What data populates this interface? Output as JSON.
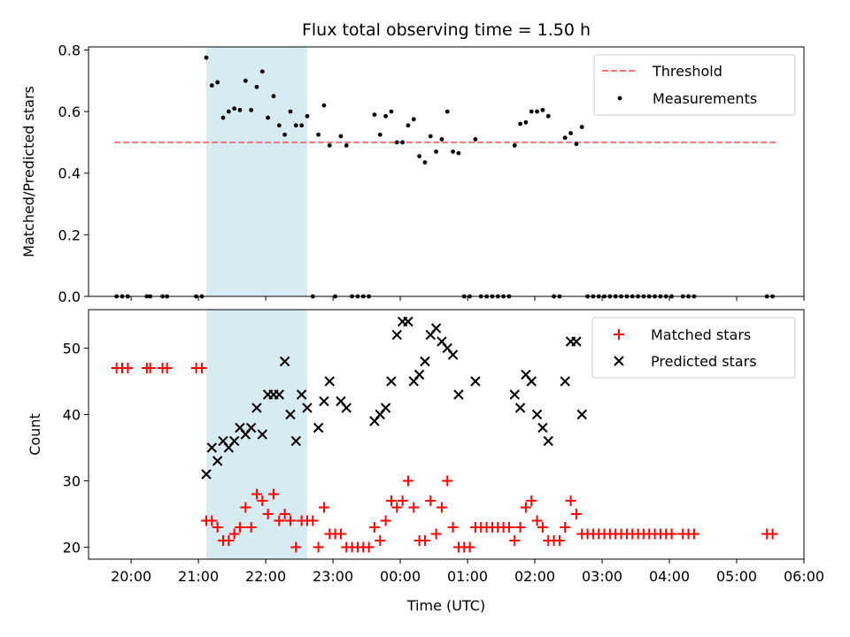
{
  "figure": {
    "title": "Flux total observing time = 1.50 h",
    "shaded_span": [
      "21:07",
      "22:37"
    ],
    "shade_color": "#add8e6"
  },
  "chart_data": [
    {
      "type": "scatter",
      "ylabel": "Matched/Predicted stars",
      "xlim": [
        "19:22",
        "06:00"
      ],
      "ylim": [
        0,
        0.81
      ],
      "yticks": [
        0.0,
        0.2,
        0.4,
        0.6,
        0.8
      ],
      "ytick_labels": [
        "0.0",
        "0.2",
        "0.4",
        "0.6",
        "0.8"
      ],
      "legend_position": "top-right",
      "threshold": {
        "name": "Threshold",
        "value": 0.5,
        "x": [
          "19:45",
          "05:35"
        ],
        "color": "#ff7070"
      },
      "series": [
        {
          "name": "Measurements",
          "color": "#000000",
          "marker": "dot",
          "points": [
            [
              "19:47",
              0
            ],
            [
              "19:52",
              0
            ],
            [
              "19:57",
              0
            ],
            [
              "20:14",
              0
            ],
            [
              "20:17",
              0
            ],
            [
              "20:28",
              0
            ],
            [
              "20:32",
              0
            ],
            [
              "20:58",
              0
            ],
            [
              "21:03",
              0
            ],
            [
              "21:07",
              0.775
            ],
            [
              "21:12",
              0.685
            ],
            [
              "21:17",
              0.695
            ],
            [
              "21:22",
              0.58
            ],
            [
              "21:27",
              0.6
            ],
            [
              "21:32",
              0.61
            ],
            [
              "21:37",
              0.605
            ],
            [
              "21:42",
              0.7
            ],
            [
              "21:47",
              0.605
            ],
            [
              "21:52",
              0.68
            ],
            [
              "21:57",
              0.73
            ],
            [
              "22:02",
              0.58
            ],
            [
              "22:07",
              0.65
            ],
            [
              "22:12",
              0.555
            ],
            [
              "22:17",
              0.525
            ],
            [
              "22:22",
              0.6
            ],
            [
              "22:27",
              0.555
            ],
            [
              "22:32",
              0.555
            ],
            [
              "22:37",
              0.585
            ],
            [
              "22:42",
              0
            ],
            [
              "22:47",
              0.525
            ],
            [
              "22:52",
              0.62
            ],
            [
              "22:57",
              0.49
            ],
            [
              "23:02",
              0
            ],
            [
              "23:07",
              0.52
            ],
            [
              "23:12",
              0.49
            ],
            [
              "23:17",
              0
            ],
            [
              "23:22",
              0
            ],
            [
              "23:27",
              0
            ],
            [
              "23:32",
              0
            ],
            [
              "23:37",
              0.59
            ],
            [
              "23:42",
              0.525
            ],
            [
              "23:47",
              0.585
            ],
            [
              "23:52",
              0.6
            ],
            [
              "23:57",
              0.5
            ],
            [
              "00:02",
              0.5
            ],
            [
              "00:07",
              0.555
            ],
            [
              "00:12",
              0.575
            ],
            [
              "00:17",
              0.455
            ],
            [
              "00:22",
              0.435
            ],
            [
              "00:27",
              0.52
            ],
            [
              "00:32",
              0.47
            ],
            [
              "00:37",
              0.51
            ],
            [
              "00:42",
              0.6
            ],
            [
              "00:47",
              0.47
            ],
            [
              "00:52",
              0.465
            ],
            [
              "00:57",
              0
            ],
            [
              "01:02",
              0
            ],
            [
              "01:07",
              0.51
            ],
            [
              "01:12",
              0
            ],
            [
              "01:17",
              0
            ],
            [
              "01:22",
              0
            ],
            [
              "01:27",
              0
            ],
            [
              "01:32",
              0
            ],
            [
              "01:37",
              0
            ],
            [
              "01:42",
              0.49
            ],
            [
              "01:47",
              0.56
            ],
            [
              "01:52",
              0.565
            ],
            [
              "01:57",
              0.6
            ],
            [
              "02:02",
              0.6
            ],
            [
              "02:07",
              0.605
            ],
            [
              "02:12",
              0.585
            ],
            [
              "02:17",
              0
            ],
            [
              "02:22",
              0
            ],
            [
              "02:27",
              0.515
            ],
            [
              "02:32",
              0.53
            ],
            [
              "02:37",
              0.495
            ],
            [
              "02:42",
              0.55
            ],
            [
              "02:47",
              0
            ],
            [
              "02:52",
              0
            ],
            [
              "02:57",
              0
            ],
            [
              "03:02",
              0
            ],
            [
              "03:07",
              0
            ],
            [
              "03:12",
              0
            ],
            [
              "03:17",
              0
            ],
            [
              "03:22",
              0
            ],
            [
              "03:27",
              0
            ],
            [
              "03:32",
              0
            ],
            [
              "03:37",
              0
            ],
            [
              "03:42",
              0
            ],
            [
              "03:47",
              0
            ],
            [
              "03:52",
              0
            ],
            [
              "03:57",
              0
            ],
            [
              "04:02",
              0
            ],
            [
              "04:12",
              0
            ],
            [
              "04:17",
              0
            ],
            [
              "04:22",
              0
            ],
            [
              "05:27",
              0
            ],
            [
              "05:32",
              0
            ]
          ]
        }
      ]
    },
    {
      "type": "scatter",
      "xlabel": "Time (UTC)",
      "ylabel": "Count",
      "xlim": [
        "19:22",
        "06:00"
      ],
      "ylim": [
        18.2,
        55.8
      ],
      "yticks": [
        20,
        30,
        40,
        50
      ],
      "ytick_labels": [
        "20",
        "30",
        "40",
        "50"
      ],
      "xticks": [
        "20:00",
        "21:00",
        "22:00",
        "23:00",
        "00:00",
        "01:00",
        "02:00",
        "03:00",
        "04:00",
        "05:00",
        "06:00"
      ],
      "xtick_labels": [
        "20:00",
        "21:00",
        "22:00",
        "23:00",
        "00:00",
        "01:00",
        "02:00",
        "03:00",
        "04:00",
        "05:00",
        "06:00"
      ],
      "legend_position": "top-right",
      "series": [
        {
          "name": "Matched stars",
          "color": "#ff0000",
          "marker": "plus",
          "points": [
            [
              "19:47",
              47
            ],
            [
              "19:52",
              47
            ],
            [
              "19:57",
              47
            ],
            [
              "20:14",
              47
            ],
            [
              "20:17",
              47
            ],
            [
              "20:28",
              47
            ],
            [
              "20:32",
              47
            ],
            [
              "20:58",
              47
            ],
            [
              "21:03",
              47
            ],
            [
              "21:07",
              24
            ],
            [
              "21:12",
              24
            ],
            [
              "21:17",
              23
            ],
            [
              "21:22",
              21
            ],
            [
              "21:27",
              21
            ],
            [
              "21:32",
              22
            ],
            [
              "21:37",
              23
            ],
            [
              "21:42",
              26
            ],
            [
              "21:47",
              23
            ],
            [
              "21:52",
              28
            ],
            [
              "21:57",
              27
            ],
            [
              "22:02",
              25
            ],
            [
              "22:07",
              28
            ],
            [
              "22:12",
              24
            ],
            [
              "22:17",
              25
            ],
            [
              "22:22",
              24
            ],
            [
              "22:27",
              20
            ],
            [
              "22:32",
              24
            ],
            [
              "22:37",
              24
            ],
            [
              "22:42",
              24
            ],
            [
              "22:47",
              20
            ],
            [
              "22:52",
              26
            ],
            [
              "22:57",
              22
            ],
            [
              "23:02",
              22
            ],
            [
              "23:07",
              22
            ],
            [
              "23:12",
              20
            ],
            [
              "23:17",
              20
            ],
            [
              "23:22",
              20
            ],
            [
              "23:27",
              20
            ],
            [
              "23:32",
              20
            ],
            [
              "23:37",
              23
            ],
            [
              "23:42",
              21
            ],
            [
              "23:47",
              24
            ],
            [
              "23:52",
              27
            ],
            [
              "23:57",
              26
            ],
            [
              "00:02",
              27
            ],
            [
              "00:07",
              30
            ],
            [
              "00:12",
              26
            ],
            [
              "00:17",
              21
            ],
            [
              "00:22",
              21
            ],
            [
              "00:27",
              27
            ],
            [
              "00:32",
              22
            ],
            [
              "00:37",
              26
            ],
            [
              "00:42",
              30
            ],
            [
              "00:47",
              23
            ],
            [
              "00:52",
              20
            ],
            [
              "00:57",
              20
            ],
            [
              "01:02",
              20
            ],
            [
              "01:07",
              23
            ],
            [
              "01:12",
              23
            ],
            [
              "01:17",
              23
            ],
            [
              "01:22",
              23
            ],
            [
              "01:27",
              23
            ],
            [
              "01:32",
              23
            ],
            [
              "01:37",
              23
            ],
            [
              "01:42",
              21
            ],
            [
              "01:47",
              23
            ],
            [
              "01:52",
              26
            ],
            [
              "01:57",
              27
            ],
            [
              "02:02",
              24
            ],
            [
              "02:07",
              23
            ],
            [
              "02:12",
              21
            ],
            [
              "02:17",
              21
            ],
            [
              "02:22",
              21
            ],
            [
              "02:27",
              23
            ],
            [
              "02:32",
              27
            ],
            [
              "02:37",
              25
            ],
            [
              "02:42",
              22
            ],
            [
              "02:47",
              22
            ],
            [
              "02:52",
              22
            ],
            [
              "02:57",
              22
            ],
            [
              "03:02",
              22
            ],
            [
              "03:07",
              22
            ],
            [
              "03:12",
              22
            ],
            [
              "03:17",
              22
            ],
            [
              "03:22",
              22
            ],
            [
              "03:27",
              22
            ],
            [
              "03:32",
              22
            ],
            [
              "03:37",
              22
            ],
            [
              "03:42",
              22
            ],
            [
              "03:47",
              22
            ],
            [
              "03:52",
              22
            ],
            [
              "03:57",
              22
            ],
            [
              "04:02",
              22
            ],
            [
              "04:12",
              22
            ],
            [
              "04:17",
              22
            ],
            [
              "04:22",
              22
            ],
            [
              "05:27",
              22
            ],
            [
              "05:32",
              22
            ]
          ]
        },
        {
          "name": "Predicted stars",
          "color": "#000000",
          "marker": "x",
          "points": [
            [
              "21:07",
              31
            ],
            [
              "21:12",
              35
            ],
            [
              "21:17",
              33
            ],
            [
              "21:22",
              36
            ],
            [
              "21:27",
              35
            ],
            [
              "21:32",
              36
            ],
            [
              "21:37",
              38
            ],
            [
              "21:42",
              37
            ],
            [
              "21:47",
              38
            ],
            [
              "21:52",
              41
            ],
            [
              "21:57",
              37
            ],
            [
              "22:02",
              43
            ],
            [
              "22:07",
              43
            ],
            [
              "22:12",
              43
            ],
            [
              "22:17",
              48
            ],
            [
              "22:22",
              40
            ],
            [
              "22:27",
              36
            ],
            [
              "22:32",
              43
            ],
            [
              "22:37",
              41
            ],
            [
              "22:47",
              38
            ],
            [
              "22:52",
              42
            ],
            [
              "22:57",
              45
            ],
            [
              "23:07",
              42
            ],
            [
              "23:12",
              41
            ],
            [
              "23:37",
              39
            ],
            [
              "23:42",
              40
            ],
            [
              "23:47",
              41
            ],
            [
              "23:52",
              45
            ],
            [
              "23:57",
              52
            ],
            [
              "00:02",
              54
            ],
            [
              "00:07",
              54
            ],
            [
              "00:12",
              45
            ],
            [
              "00:17",
              46
            ],
            [
              "00:22",
              48
            ],
            [
              "00:27",
              52
            ],
            [
              "00:32",
              53
            ],
            [
              "00:37",
              51
            ],
            [
              "00:42",
              50
            ],
            [
              "00:47",
              49
            ],
            [
              "00:52",
              43
            ],
            [
              "01:07",
              45
            ],
            [
              "01:42",
              43
            ],
            [
              "01:47",
              41
            ],
            [
              "01:52",
              46
            ],
            [
              "01:57",
              45
            ],
            [
              "02:02",
              40
            ],
            [
              "02:07",
              38
            ],
            [
              "02:12",
              36
            ],
            [
              "02:27",
              45
            ],
            [
              "02:32",
              51
            ],
            [
              "02:37",
              51
            ],
            [
              "02:42",
              40
            ]
          ]
        }
      ]
    }
  ]
}
